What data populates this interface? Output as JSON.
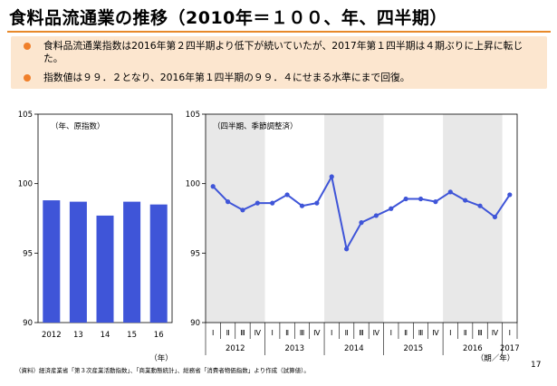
{
  "title": "食料品流通業の推移（2010年＝１００、年、四半期）",
  "summary": {
    "bullets": [
      "食料品流通業指数は2016年第２四半期より低下が続いていたが、2017年第１四半期は４期ぶりに上昇に転じた。",
      "指数値は９９．２となり、2016年第１四半期の９９．４にせまる水準にまで回復。"
    ]
  },
  "colors": {
    "accent": "#E8892A",
    "summary_bg": "#FCE6CF",
    "bar": "#3F55D8",
    "line": "#3F55D8",
    "shade": "#E8E8E8"
  },
  "chart_data": [
    {
      "type": "bar",
      "annotation": "（年、原指数）",
      "categories": [
        "2012",
        "13",
        "14",
        "15",
        "16"
      ],
      "values": [
        98.8,
        98.7,
        97.7,
        98.7,
        98.5
      ],
      "ylim": [
        90,
        105
      ],
      "yticks": [
        "90",
        "95",
        "100",
        "105"
      ],
      "x_unit": "（年）",
      "grid": false
    },
    {
      "type": "line",
      "annotation": "（四半期、季節調整済）",
      "quarters": [
        "Ⅰ",
        "Ⅱ",
        "Ⅲ",
        "Ⅳ",
        "Ⅰ",
        "Ⅱ",
        "Ⅲ",
        "Ⅳ",
        "Ⅰ",
        "Ⅱ",
        "Ⅲ",
        "Ⅳ",
        "Ⅰ",
        "Ⅱ",
        "Ⅲ",
        "Ⅳ",
        "Ⅰ",
        "Ⅱ",
        "Ⅲ",
        "Ⅳ",
        "Ⅰ"
      ],
      "years": [
        "2012",
        "2013",
        "2014",
        "2015",
        "2016",
        "2017"
      ],
      "values": [
        99.8,
        98.7,
        98.1,
        98.6,
        98.6,
        99.2,
        98.4,
        98.6,
        100.5,
        95.3,
        97.2,
        97.7,
        98.2,
        98.9,
        98.9,
        98.7,
        99.4,
        98.8,
        98.4,
        97.6,
        99.2
      ],
      "ylim": [
        90,
        105
      ],
      "yticks": [
        "90",
        "95",
        "100",
        "105"
      ],
      "x_unit": "（期／年）",
      "grid": false
    }
  ],
  "source_note": "（資料）経済産業省「第３次産業活動指数」、「商業動態統計」、総務省「消費者物価指数」より作成（試算値）。",
  "page_number": "17"
}
